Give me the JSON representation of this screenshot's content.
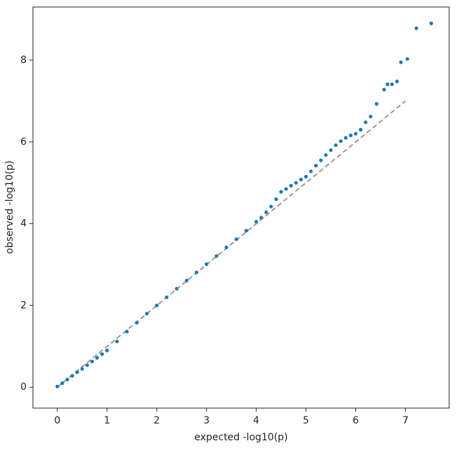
{
  "chart_data": {
    "type": "scatter",
    "x_label": "expected -log10(p)",
    "y_label": "observed -log10(p)",
    "xlim": [
      -0.49,
      7.88
    ],
    "ylim": [
      -0.51,
      9.3
    ],
    "xticks": [
      0,
      1,
      2,
      3,
      4,
      5,
      6,
      7
    ],
    "yticks": [
      0,
      2,
      4,
      6,
      8
    ],
    "series": [
      {
        "color": "#1f77b4",
        "x": [
          0,
          0.1,
          0.2,
          0.3,
          0.4,
          0.5,
          0.6,
          0.7,
          0.8,
          0.9,
          1.0,
          1.2,
          1.4,
          1.6,
          1.8,
          2.0,
          2.2,
          2.4,
          2.6,
          2.8,
          3.0,
          3.2,
          3.4,
          3.6,
          3.8,
          4.0,
          4.1,
          4.2,
          4.3,
          4.4,
          4.5,
          4.6,
          4.7,
          4.8,
          4.9,
          5.0,
          5.1,
          5.2,
          5.3,
          5.4,
          5.5,
          5.6,
          5.7,
          5.8,
          5.9,
          6.0,
          6.1,
          6.2,
          6.3,
          6.42,
          6.57,
          6.64,
          6.73,
          6.83,
          6.91,
          7.04,
          7.22,
          7.52
        ],
        "values": [
          0.02,
          0.1,
          0.19,
          0.28,
          0.37,
          0.45,
          0.54,
          0.63,
          0.72,
          0.81,
          0.9,
          1.12,
          1.36,
          1.58,
          1.8,
          2.0,
          2.2,
          2.41,
          2.61,
          2.81,
          3.01,
          3.21,
          3.42,
          3.62,
          3.83,
          4.05,
          4.15,
          4.28,
          4.42,
          4.6,
          4.78,
          4.85,
          4.93,
          5.0,
          5.08,
          5.15,
          5.28,
          5.42,
          5.55,
          5.68,
          5.8,
          5.92,
          6.02,
          6.1,
          6.16,
          6.2,
          6.3,
          6.48,
          6.62,
          6.93,
          7.28,
          7.41,
          7.41,
          7.48,
          7.95,
          8.03,
          8.78,
          8.9
        ]
      }
    ],
    "reference_line": {
      "x": [
        0,
        7
      ],
      "values": [
        0,
        7
      ],
      "color": "#999999"
    }
  }
}
